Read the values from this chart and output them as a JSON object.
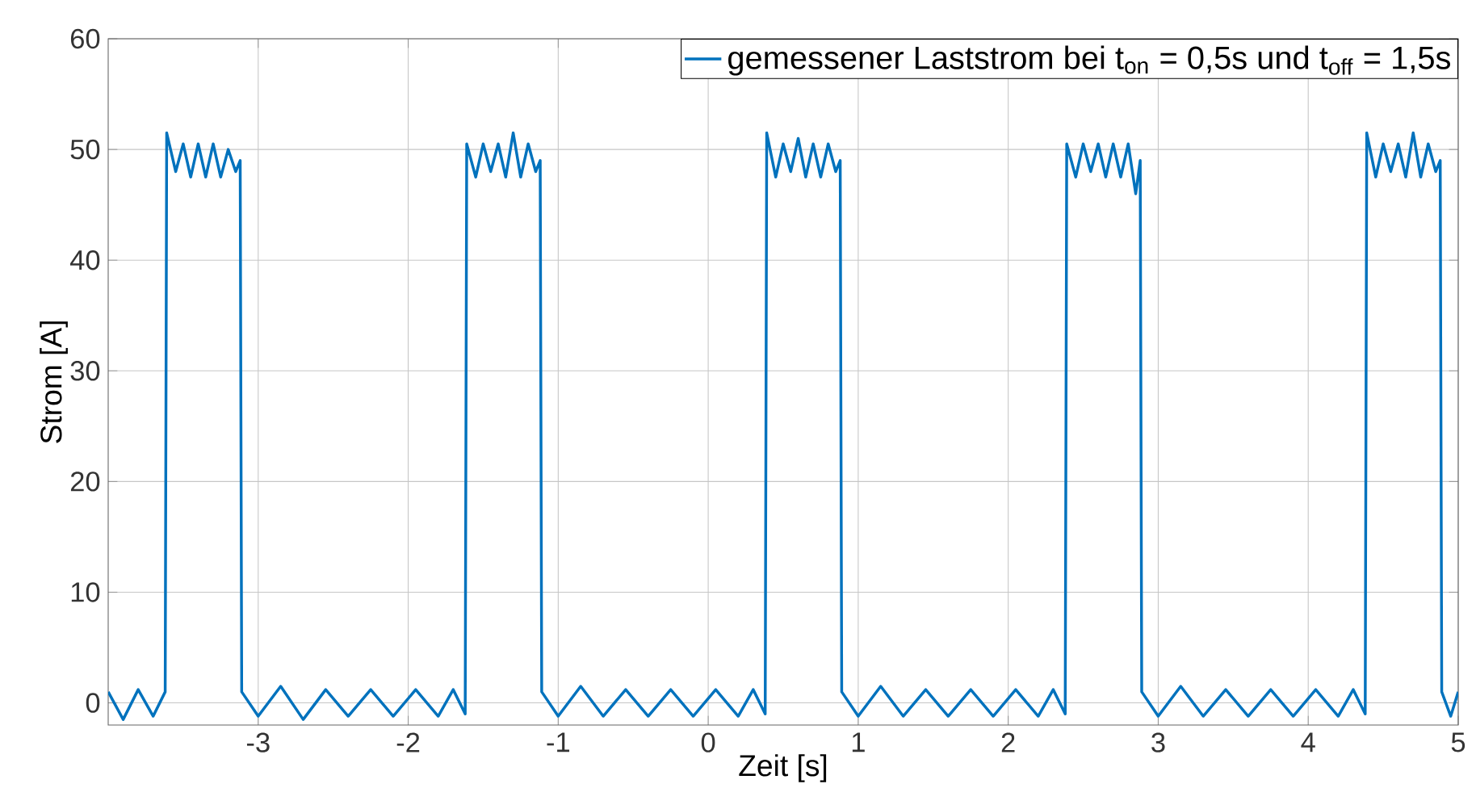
{
  "chart_data": {
    "type": "line",
    "xlabel": "Zeit [s]",
    "ylabel": "Strom [A]",
    "xlim": [
      -4,
      5
    ],
    "ylim": [
      -2,
      60
    ],
    "xticks": [
      -3,
      -2,
      -1,
      0,
      1,
      2,
      3,
      4,
      5
    ],
    "yticks": [
      0,
      10,
      20,
      30,
      40,
      50,
      60
    ],
    "grid": true,
    "legend": "top right",
    "marker": "none",
    "line_style": "solid",
    "series": [
      {
        "name": "gemessener Laststrom bei t$_{on}$ = 0,5s und t$_{off}$ = 1,5s",
        "color": "#0072bd",
        "x": [
          -4.0,
          -3.9,
          -3.8,
          -3.7,
          -3.62,
          -3.61,
          -3.55,
          -3.5,
          -3.45,
          -3.4,
          -3.35,
          -3.3,
          -3.25,
          -3.2,
          -3.15,
          -3.12,
          -3.11,
          -3.0,
          -2.85,
          -2.7,
          -2.55,
          -2.4,
          -2.25,
          -2.1,
          -1.95,
          -1.8,
          -1.7,
          -1.62,
          -1.61,
          -1.55,
          -1.5,
          -1.45,
          -1.4,
          -1.35,
          -1.3,
          -1.25,
          -1.2,
          -1.15,
          -1.12,
          -1.11,
          -1.0,
          -0.85,
          -0.7,
          -0.55,
          -0.4,
          -0.25,
          -0.1,
          0.05,
          0.2,
          0.3,
          0.38,
          0.39,
          0.45,
          0.5,
          0.55,
          0.6,
          0.65,
          0.7,
          0.75,
          0.8,
          0.85,
          0.88,
          0.89,
          1.0,
          1.15,
          1.3,
          1.45,
          1.6,
          1.75,
          1.9,
          2.05,
          2.2,
          2.3,
          2.38,
          2.39,
          2.45,
          2.5,
          2.55,
          2.6,
          2.65,
          2.7,
          2.75,
          2.8,
          2.85,
          2.88,
          2.89,
          3.0,
          3.15,
          3.3,
          3.45,
          3.6,
          3.75,
          3.9,
          4.05,
          4.2,
          4.3,
          4.38,
          4.39,
          4.45,
          4.5,
          4.55,
          4.6,
          4.65,
          4.7,
          4.75,
          4.8,
          4.85,
          4.88,
          4.89,
          4.95,
          5.0
        ],
        "values": [
          1,
          -1.5,
          1.2,
          -1.2,
          1,
          51.5,
          48,
          50.5,
          47.5,
          50.5,
          47.5,
          50.5,
          47.5,
          50,
          48,
          49,
          1,
          -1.2,
          1.5,
          -1.5,
          1.2,
          -1.2,
          1.2,
          -1.2,
          1.2,
          -1.2,
          1.2,
          -1,
          50.5,
          47.5,
          50.5,
          48,
          50.5,
          47.5,
          51.5,
          47.5,
          50.5,
          48,
          49,
          1,
          -1.2,
          1.5,
          -1.2,
          1.2,
          -1.2,
          1.2,
          -1.2,
          1.2,
          -1.2,
          1.2,
          -1,
          51.5,
          47.5,
          50.5,
          48,
          51,
          47.5,
          50.5,
          47.5,
          50.5,
          48,
          49,
          1,
          -1.2,
          1.5,
          -1.2,
          1.2,
          -1.2,
          1.2,
          -1.2,
          1.2,
          -1.2,
          1.2,
          -1,
          50.5,
          47.5,
          50.5,
          48,
          50.5,
          47.5,
          50.5,
          47.5,
          50.5,
          46,
          49,
          1,
          -1.2,
          1.5,
          -1.2,
          1.2,
          -1.2,
          1.2,
          -1.2,
          1.2,
          -1.2,
          1.2,
          -1,
          51.5,
          47.5,
          50.5,
          48,
          50.5,
          47.5,
          51.5,
          47.5,
          50.5,
          48,
          49,
          1,
          -1.2,
          1
        ]
      }
    ]
  }
}
